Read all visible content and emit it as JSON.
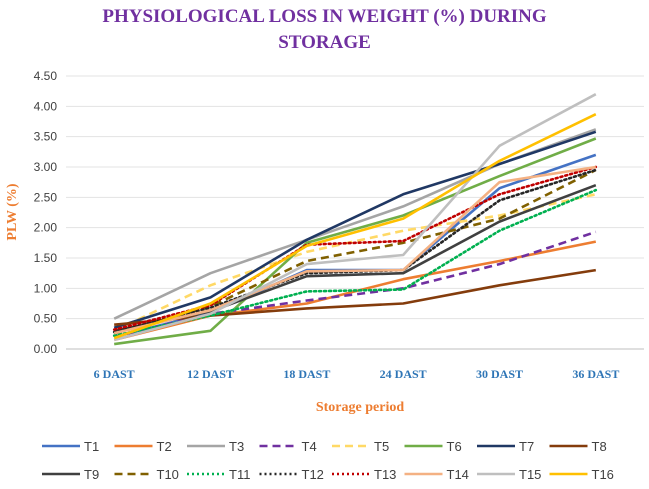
{
  "chart_data": {
    "type": "line",
    "title_line1": "PHYSIOLOGICAL LOSS IN WEIGHT (%) DURING",
    "title_line2": "STORAGE",
    "xlabel": "Storage period",
    "ylabel": "PLW (%)",
    "categories": [
      "6 DAST",
      "12 DAST",
      "18 DAST",
      "24 DAST",
      "30 DAST",
      "36 DAST"
    ],
    "yticks": [
      "0.00",
      "0.50",
      "1.00",
      "1.50",
      "2.00",
      "2.50",
      "3.00",
      "3.50",
      "4.00",
      "4.50"
    ],
    "ylim": [
      0,
      4.5
    ],
    "legend_position": "bottom",
    "series": [
      {
        "name": "T1",
        "color": "#4472c4",
        "dash": "solid",
        "values": [
          0.2,
          0.6,
          1.3,
          1.3,
          2.65,
          3.2
        ]
      },
      {
        "name": "T2",
        "color": "#ed7d31",
        "dash": "solid",
        "values": [
          0.15,
          0.55,
          0.75,
          1.15,
          1.45,
          1.77
        ]
      },
      {
        "name": "T3",
        "color": "#a5a5a5",
        "dash": "solid",
        "values": [
          0.5,
          1.25,
          1.8,
          2.35,
          3.05,
          3.62
        ]
      },
      {
        "name": "T4",
        "color": "#7030a0",
        "dash": "dash",
        "values": [
          0.2,
          0.58,
          0.8,
          1.0,
          1.4,
          1.93
        ]
      },
      {
        "name": "T5",
        "color": "#ffd966",
        "dash": "dash",
        "values": [
          0.3,
          1.05,
          1.6,
          1.95,
          2.2,
          2.55
        ]
      },
      {
        "name": "T6",
        "color": "#70ad47",
        "dash": "solid",
        "values": [
          0.08,
          0.3,
          1.75,
          2.2,
          2.85,
          3.47
        ]
      },
      {
        "name": "T7",
        "color": "#203864",
        "dash": "solid",
        "values": [
          0.35,
          0.85,
          1.8,
          2.55,
          3.05,
          3.58
        ]
      },
      {
        "name": "T8",
        "color": "#843c0c",
        "dash": "solid",
        "values": [
          0.4,
          0.55,
          0.67,
          0.75,
          1.05,
          1.3
        ]
      },
      {
        "name": "T9",
        "color": "#404040",
        "dash": "solid",
        "values": [
          0.3,
          0.62,
          1.2,
          1.25,
          2.1,
          2.7
        ]
      },
      {
        "name": "T10",
        "color": "#806000",
        "dash": "dash",
        "values": [
          0.25,
          0.7,
          1.45,
          1.75,
          2.15,
          2.95
        ]
      },
      {
        "name": "T11",
        "color": "#00b050",
        "dash": "dot",
        "values": [
          0.22,
          0.55,
          0.95,
          0.98,
          1.95,
          2.62
        ]
      },
      {
        "name": "T12",
        "color": "#262626",
        "dash": "dot",
        "values": [
          0.28,
          0.68,
          1.25,
          1.3,
          2.45,
          2.95
        ]
      },
      {
        "name": "T13",
        "color": "#c00000",
        "dash": "dot",
        "values": [
          0.32,
          0.72,
          1.72,
          1.78,
          2.55,
          3.0
        ]
      },
      {
        "name": "T14",
        "color": "#f4b183",
        "dash": "solid",
        "values": [
          0.26,
          0.64,
          1.28,
          1.3,
          2.75,
          3.0
        ]
      },
      {
        "name": "T15",
        "color": "#bfbfbf",
        "dash": "solid",
        "values": [
          0.15,
          0.58,
          1.4,
          1.55,
          3.35,
          4.2
        ]
      },
      {
        "name": "T16",
        "color": "#ffc000",
        "dash": "solid",
        "values": [
          0.18,
          0.75,
          1.7,
          2.15,
          3.1,
          3.87
        ]
      }
    ]
  }
}
